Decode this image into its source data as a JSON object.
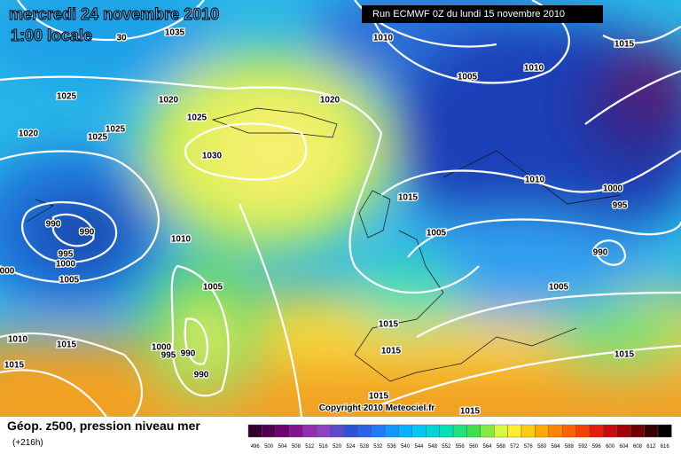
{
  "header": {
    "title": "mercredi 24 novembre 2010",
    "time": "1:00 locale",
    "run": "Run ECMWF 0Z du lundi 15 novembre 2010"
  },
  "isobar_labels": [
    "1035",
    "30",
    "1010",
    "1015",
    "1010",
    "1005",
    "1025",
    "1020",
    "1020",
    "1025",
    "1025",
    "1025",
    "1020",
    "1030",
    "1010",
    "1000",
    "1015",
    "995",
    "990",
    "990",
    "1005",
    "1010",
    "995",
    "1000",
    "990",
    "000",
    "1005",
    "1005",
    "1005",
    "1015",
    "1010",
    "1015",
    "1000",
    "995",
    "990",
    "1015",
    "1015",
    "1015",
    "990",
    "1015",
    "1015"
  ],
  "footer": {
    "title": "Géop. z500, pression niveau mer",
    "lead": "(+216h)",
    "copyright": "Copyright 2010 Meteociel.fr"
  },
  "colorbar": {
    "labels": [
      496,
      500,
      504,
      508,
      512,
      516,
      520,
      524,
      528,
      532,
      536,
      540,
      544,
      548,
      552,
      556,
      560,
      564,
      568,
      572,
      576,
      580,
      584,
      588,
      592,
      596,
      600,
      604,
      608,
      612,
      616
    ]
  }
}
